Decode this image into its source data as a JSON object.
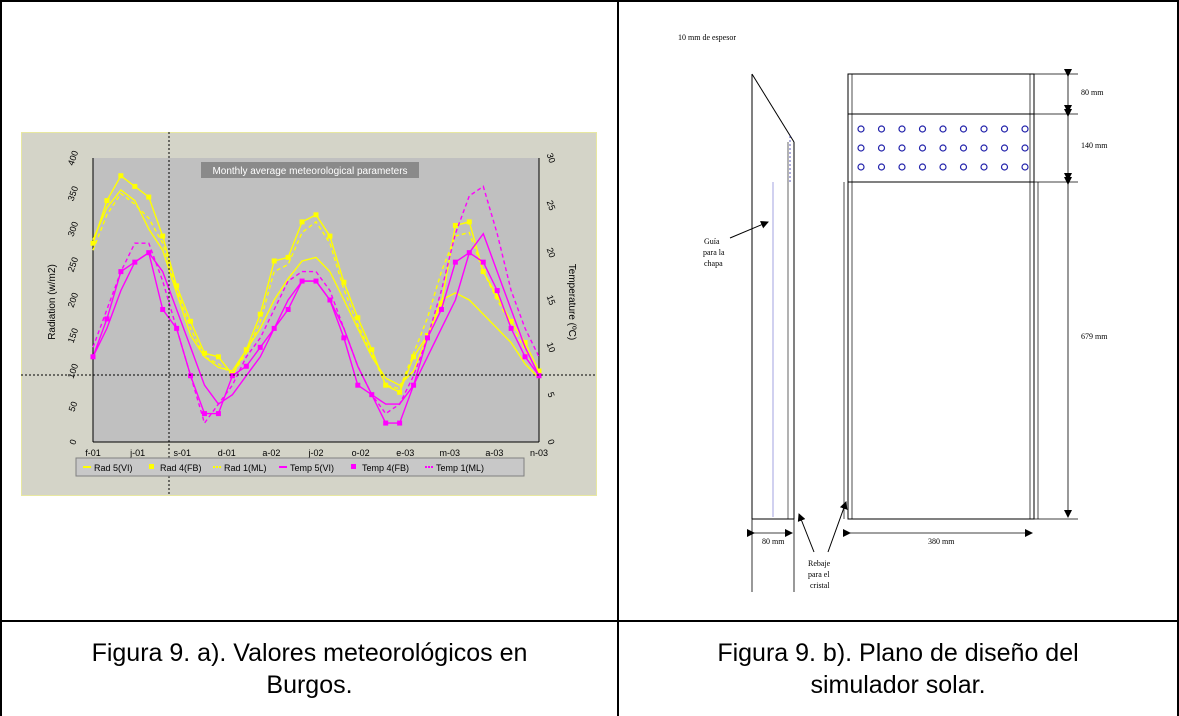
{
  "figure_a": {
    "caption": "Figura 9. a). Valores meteorológicos en Burgos.",
    "caption_line1": "Figura 9. a). Valores meteorológicos en",
    "caption_line2": "Burgos.",
    "chart_data": {
      "type": "line",
      "title": "Monthly average meteorological parameters",
      "ylabel": "Radiation (w/m2)",
      "ylabel_right": "Temperature (ºC)",
      "xlabel": "",
      "ylim": [
        0,
        400
      ],
      "ylim_right": [
        0,
        30
      ],
      "y_ticks": [
        "0",
        "50",
        "100",
        "150",
        "200",
        "250",
        "300",
        "350",
        "400"
      ],
      "y_ticks_right": [
        "0",
        "5",
        "10",
        "15",
        "20",
        "25",
        "30"
      ],
      "x_ticks": [
        "f-01",
        "j-01",
        "s-01",
        "d-01",
        "a-02",
        "j-02",
        "o-02",
        "e-03",
        "m-03",
        "a-03",
        "n-03"
      ],
      "grid": false,
      "legend_placement": "bottom",
      "series": [
        {
          "name": "Rad 5(VI)",
          "color": "#ffff00",
          "axis": "left",
          "style": "line",
          "x": [
            0,
            1,
            2,
            3,
            4,
            5,
            6,
            7,
            8,
            9,
            10,
            11,
            12,
            13,
            14,
            15,
            16,
            17,
            18,
            19,
            20,
            21,
            22,
            23,
            24,
            25,
            26,
            27,
            28,
            29,
            30,
            31,
            32
          ],
          "values": [
            285,
            330,
            355,
            340,
            300,
            270,
            210,
            150,
            120,
            105,
            100,
            130,
            160,
            200,
            230,
            255,
            260,
            240,
            200,
            160,
            120,
            90,
            80,
            100,
            150,
            200,
            210,
            200,
            180,
            160,
            140,
            110,
            90
          ]
        },
        {
          "name": "Rad 4(FB)",
          "color": "#ffff00",
          "axis": "left",
          "style": "markers",
          "x": [
            0,
            1,
            2,
            3,
            4,
            5,
            6,
            7,
            8,
            9,
            10,
            11,
            12,
            13,
            14,
            15,
            16,
            17,
            18,
            19,
            20,
            21,
            22,
            23,
            24,
            25,
            26,
            27,
            28,
            29,
            30,
            31,
            32
          ],
          "values": [
            280,
            340,
            375,
            360,
            345,
            290,
            220,
            170,
            125,
            120,
            95,
            130,
            180,
            255,
            260,
            310,
            320,
            290,
            225,
            175,
            130,
            80,
            70,
            120,
            150,
            195,
            305,
            310,
            240,
            205,
            170,
            140,
            100
          ]
        },
        {
          "name": "Rad 1(ML)",
          "color": "#ffff00",
          "axis": "left",
          "style": "dashed",
          "x": [
            0,
            1,
            2,
            3,
            4,
            5,
            6,
            7,
            8,
            9,
            10,
            11,
            12,
            13,
            14,
            15,
            16,
            17,
            18,
            19,
            20,
            21,
            22,
            23,
            24,
            25,
            26,
            27,
            28,
            29,
            30,
            31,
            32
          ],
          "values": [
            270,
            320,
            350,
            335,
            315,
            280,
            215,
            160,
            120,
            110,
            95,
            125,
            170,
            240,
            250,
            295,
            310,
            280,
            215,
            165,
            125,
            80,
            75,
            125,
            175,
            240,
            290,
            295,
            240,
            200,
            165,
            130,
            95
          ]
        },
        {
          "name": "Temp 5(VI)",
          "color": "#ff00ff",
          "axis": "right",
          "style": "line",
          "x": [
            0,
            1,
            2,
            3,
            4,
            5,
            6,
            7,
            8,
            9,
            10,
            11,
            12,
            13,
            14,
            15,
            16,
            17,
            18,
            19,
            20,
            21,
            22,
            23,
            24,
            25,
            26,
            27,
            28,
            29,
            30,
            31,
            32
          ],
          "values": [
            9,
            12,
            16,
            19,
            20,
            18,
            14,
            10,
            6,
            4,
            5,
            7,
            9,
            12,
            15,
            17,
            17,
            15,
            12,
            8,
            5,
            4,
            4,
            6,
            9,
            12,
            15,
            20,
            22,
            18,
            14,
            10,
            7
          ]
        },
        {
          "name": "Temp 4(FB)",
          "color": "#ff00ff",
          "axis": "right",
          "style": "markers",
          "x": [
            0,
            1,
            2,
            3,
            4,
            5,
            6,
            7,
            8,
            9,
            10,
            11,
            12,
            13,
            14,
            15,
            16,
            17,
            18,
            19,
            20,
            21,
            22,
            23,
            24,
            25,
            26,
            27,
            28,
            29,
            30,
            31,
            32
          ],
          "values": [
            9,
            13,
            18,
            19,
            20,
            14,
            12,
            7,
            3,
            3,
            7,
            8,
            10,
            12,
            14,
            17,
            17,
            15,
            11,
            6,
            5,
            2,
            2,
            6,
            11,
            14,
            19,
            20,
            19,
            16,
            12,
            9,
            7
          ]
        },
        {
          "name": "Temp 1(ML)",
          "color": "#ff00ff",
          "axis": "right",
          "style": "dashed",
          "x": [
            0,
            1,
            2,
            3,
            4,
            5,
            6,
            7,
            8,
            9,
            10,
            11,
            12,
            13,
            14,
            15,
            16,
            17,
            18,
            19,
            20,
            21,
            22,
            23,
            24,
            25,
            26,
            27,
            28,
            29,
            30,
            31,
            32
          ],
          "values": [
            10,
            14,
            18,
            21,
            21,
            17,
            12,
            7,
            2,
            4,
            6,
            9,
            11,
            14,
            17,
            18,
            18,
            16,
            12,
            8,
            5,
            3,
            4,
            7,
            11,
            16,
            22,
            26,
            27,
            22,
            16,
            12,
            9
          ]
        }
      ]
    }
  },
  "figure_b": {
    "caption_line1": "Figura 9. b). Plano de diseño del",
    "caption_line2": "simulador solar.",
    "labels": {
      "thickness": "10 mm de espesor",
      "guide": [
        "Guía",
        "para la",
        "chapa"
      ],
      "dim_80_top": "80 mm",
      "dim_140": "140 mm",
      "dim_679": "679 mm",
      "dim_80_bottom": "80 mm",
      "dim_380": "380 mm",
      "rebaje": [
        "Rebaje",
        "para el",
        "cristal"
      ]
    },
    "hole_grid": {
      "rows": 3,
      "cols": 9,
      "color": "#2222aa"
    }
  }
}
